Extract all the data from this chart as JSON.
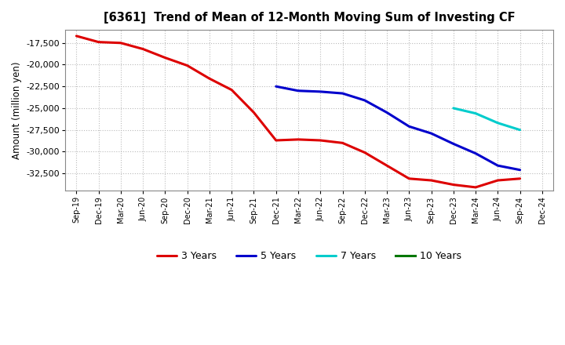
{
  "title": "[6361]  Trend of Mean of 12-Month Moving Sum of Investing CF",
  "ylabel": "Amount (million yen)",
  "background_color": "#ffffff",
  "grid_color": "#bbbbbb",
  "x_labels": [
    "Sep-19",
    "Dec-19",
    "Mar-20",
    "Jun-20",
    "Sep-20",
    "Dec-20",
    "Mar-21",
    "Jun-21",
    "Sep-21",
    "Dec-21",
    "Mar-22",
    "Jun-22",
    "Sep-22",
    "Dec-22",
    "Mar-23",
    "Jun-23",
    "Sep-23",
    "Dec-23",
    "Mar-24",
    "Jun-24",
    "Sep-24",
    "Dec-24"
  ],
  "series": {
    "3 Years": {
      "color": "#dd0000",
      "x_values": [
        "Sep-19",
        "Dec-19",
        "Mar-20",
        "Jun-20",
        "Sep-20",
        "Dec-20",
        "Mar-21",
        "Jun-21",
        "Sep-21",
        "Dec-21",
        "Mar-22",
        "Jun-22",
        "Sep-22",
        "Dec-22",
        "Mar-23",
        "Jun-23",
        "Sep-23",
        "Dec-23",
        "Mar-24",
        "Jun-24",
        "Sep-24"
      ],
      "y_values": [
        -16700,
        -17400,
        -17500,
        -18200,
        -19200,
        -20100,
        -21600,
        -22900,
        -25500,
        -28700,
        -28600,
        -28700,
        -29000,
        -30100,
        -31600,
        -33100,
        -33300,
        -33800,
        -34100,
        -33300,
        -33100
      ]
    },
    "5 Years": {
      "color": "#0000cc",
      "x_values": [
        "Dec-21",
        "Mar-22",
        "Jun-22",
        "Sep-22",
        "Dec-22",
        "Mar-23",
        "Jun-23",
        "Sep-23",
        "Dec-23",
        "Mar-24",
        "Jun-24",
        "Sep-24"
      ],
      "y_values": [
        -22500,
        -23000,
        -23100,
        -23300,
        -24100,
        -25500,
        -27100,
        -27900,
        -29100,
        -30200,
        -31600,
        -32100
      ]
    },
    "7 Years": {
      "color": "#00cccc",
      "x_values": [
        "Dec-23",
        "Mar-24",
        "Jun-24",
        "Sep-24"
      ],
      "y_values": [
        -25000,
        -25600,
        -26700,
        -27500
      ]
    },
    "10 Years": {
      "color": "#007700",
      "x_values": [],
      "y_values": []
    }
  },
  "ylim": [
    -34500,
    -16000
  ],
  "yticks": [
    -17500,
    -20000,
    -22500,
    -25000,
    -27500,
    -30000,
    -32500
  ],
  "legend_order": [
    "3 Years",
    "5 Years",
    "7 Years",
    "10 Years"
  ]
}
